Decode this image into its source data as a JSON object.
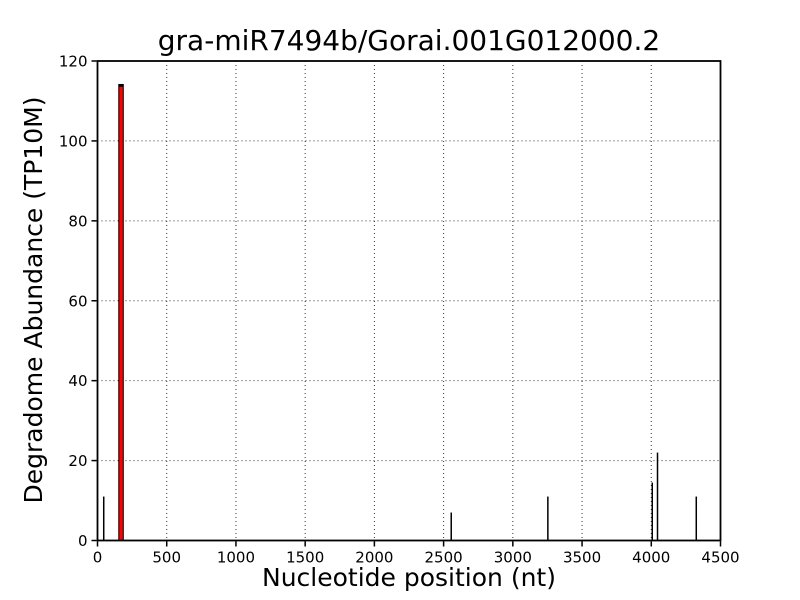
{
  "chart_data": {
    "type": "bar",
    "style": "stem-tplot",
    "title": "gra-miR7494b/Gorai.001G012000.2",
    "xlabel": "Nucleotide position (nt)",
    "ylabel": "Degradome Abundance (TP10M)",
    "xlim": [
      0,
      4500
    ],
    "ylim": [
      0,
      120
    ],
    "xticks": [
      0,
      500,
      1000,
      1500,
      2000,
      2500,
      3000,
      3500,
      4000,
      4500
    ],
    "yticks": [
      0,
      20,
      40,
      60,
      80,
      100,
      120
    ],
    "grid": "dotted",
    "legend": "none",
    "colors": {
      "stem": "#000000",
      "highlight_fill": "#ff0000",
      "highlight_edge": "#000000",
      "axis": "#000000",
      "grid": "#333333",
      "background": "#ffffff"
    },
    "points": [
      {
        "x": 45,
        "y": 11,
        "highlight": false
      },
      {
        "x": 170,
        "y": 113.5,
        "highlight": true
      },
      {
        "x": 2555,
        "y": 7,
        "highlight": false
      },
      {
        "x": 3253,
        "y": 11,
        "highlight": false
      },
      {
        "x": 4007,
        "y": 14.5,
        "highlight": false
      },
      {
        "x": 4045,
        "y": 22,
        "highlight": false
      },
      {
        "x": 4325,
        "y": 11,
        "highlight": false
      }
    ]
  }
}
